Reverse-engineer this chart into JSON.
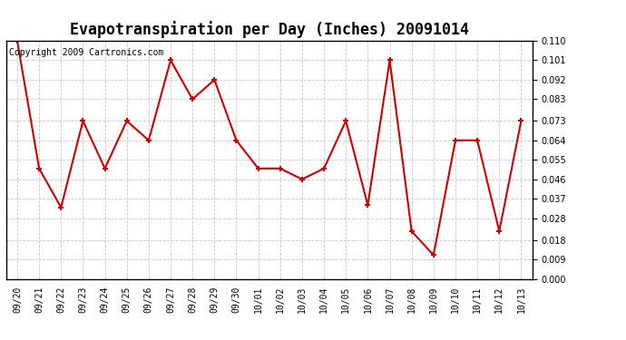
{
  "title": "Evapotranspiration per Day (Inches) 20091014",
  "copyright_text": "Copyright 2009 Cartronics.com",
  "x_labels": [
    "09/20",
    "09/21",
    "09/22",
    "09/23",
    "09/24",
    "09/25",
    "09/26",
    "09/27",
    "09/28",
    "09/29",
    "09/30",
    "10/01",
    "10/02",
    "10/03",
    "10/04",
    "10/05",
    "10/06",
    "10/07",
    "10/08",
    "10/09",
    "10/10",
    "10/11",
    "10/12",
    "10/13"
  ],
  "y_values": [
    0.11,
    0.051,
    0.033,
    0.073,
    0.051,
    0.073,
    0.064,
    0.101,
    0.083,
    0.092,
    0.064,
    0.051,
    0.051,
    0.046,
    0.051,
    0.073,
    0.034,
    0.101,
    0.022,
    0.011,
    0.064,
    0.064,
    0.022,
    0.073
  ],
  "line_color": "#cc0000",
  "marker": "+",
  "marker_size": 5,
  "marker_linewidth": 1.5,
  "linewidth": 1.5,
  "ylim": [
    0.0,
    0.11
  ],
  "yticks": [
    0.0,
    0.009,
    0.018,
    0.028,
    0.037,
    0.046,
    0.055,
    0.064,
    0.073,
    0.083,
    0.092,
    0.101,
    0.11
  ],
  "background_color": "#ffffff",
  "grid_color": "#c8c8c8",
  "title_fontsize": 12,
  "tick_fontsize": 7,
  "copyright_fontsize": 7,
  "figwidth": 6.9,
  "figheight": 3.75,
  "dpi": 100
}
